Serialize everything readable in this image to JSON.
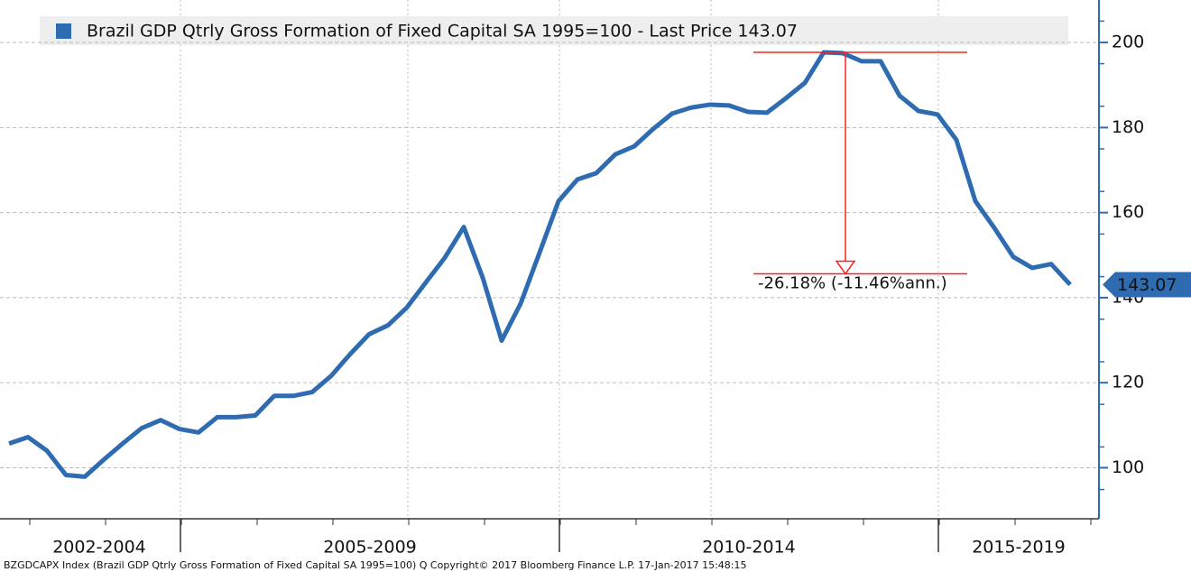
{
  "chart_data": {
    "type": "line",
    "series": [
      {
        "name": "Brazil GDP Qtrly Gross Formation of Fixed Capital SA 1995=100 - Last Price 143.07",
        "color": "#2e6bb0",
        "values": [
          105.7,
          107.2,
          104.0,
          98.3,
          97.9,
          101.9,
          105.7,
          109.3,
          111.2,
          109.1,
          108.3,
          111.9,
          111.9,
          112.3,
          116.9,
          116.9,
          117.8,
          121.6,
          126.7,
          131.4,
          133.5,
          137.7,
          143.6,
          149.4,
          156.6,
          144.7,
          129.9,
          138.6,
          150.6,
          162.7,
          167.8,
          169.3,
          173.7,
          175.6,
          179.7,
          183.3,
          184.7,
          185.4,
          185.2,
          183.7,
          183.5,
          186.9,
          190.5,
          197.7,
          197.5,
          195.6,
          195.6,
          187.5,
          183.9,
          183.1,
          177.1,
          162.7,
          156.4,
          149.6,
          147.0,
          147.9,
          143.07
        ]
      }
    ],
    "categories": [
      null,
      null,
      null,
      null,
      null,
      null,
      null,
      null,
      null,
      null,
      null,
      null,
      null,
      null,
      null,
      null,
      null,
      null,
      null,
      null,
      null,
      null,
      null,
      null,
      null,
      null,
      null,
      null,
      null,
      null,
      null,
      null,
      null,
      null,
      null,
      null,
      null,
      null,
      null,
      null,
      null,
      null,
      null,
      null,
      null,
      null,
      null,
      null,
      null,
      null,
      null,
      null,
      null,
      null,
      null,
      null,
      null
    ],
    "x_groups": [
      "2002-2004",
      "2005-2009",
      "2010-2014",
      "2015-2019"
    ],
    "ylim": [
      88,
      210
    ],
    "yticks": [
      100,
      120,
      140,
      160,
      180,
      200
    ],
    "grid": true,
    "annotation": "-26.18% (-11.46%ann.)",
    "annotation_color": "#ff2020",
    "footer": "BZGDCAPX Index (Brazil GDP Qtrly Gross Formation of Fixed Capital SA 1995=100) Q  Copyright© 2017 Bloomberg Finance L.P.  17-Jan-2017 15:48:15"
  }
}
